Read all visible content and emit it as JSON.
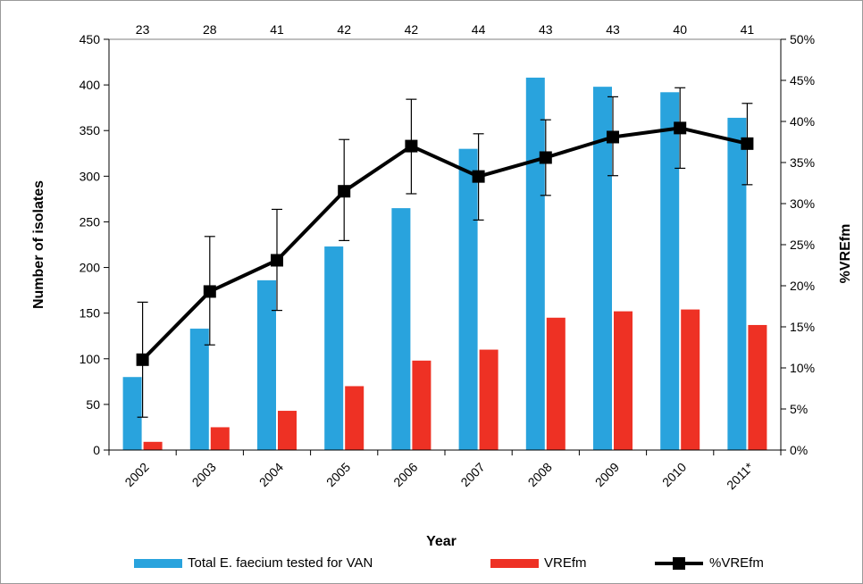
{
  "chart_data": {
    "type": "bar",
    "categories": [
      "2002",
      "2003",
      "2004",
      "2005",
      "2006",
      "2007",
      "2008",
      "2009",
      "2010",
      "2011*"
    ],
    "top_labels": [
      "23",
      "28",
      "41",
      "42",
      "42",
      "44",
      "43",
      "43",
      "40",
      "41"
    ],
    "series": [
      {
        "name": "Total E. faecium tested for VAN",
        "type": "bar",
        "axis": "left",
        "color": "#29a3dd",
        "values": [
          80,
          133,
          186,
          223,
          265,
          330,
          408,
          398,
          392,
          364
        ]
      },
      {
        "name": "VREfm",
        "type": "bar",
        "axis": "left",
        "color": "#ee3124",
        "values": [
          9,
          25,
          43,
          70,
          98,
          110,
          145,
          152,
          154,
          137
        ]
      },
      {
        "name": "%VREfm",
        "type": "line",
        "axis": "right",
        "color": "#000000",
        "values": [
          11,
          19.3,
          23.1,
          31.5,
          37,
          33.3,
          35.6,
          38.1,
          39.2,
          37.3
        ],
        "error_low": [
          4,
          12.8,
          17,
          25.5,
          31.2,
          28,
          31,
          33.4,
          34.3,
          32.3
        ],
        "error_high": [
          18,
          26,
          29.3,
          37.8,
          42.7,
          38.5,
          40.2,
          43,
          44.1,
          42.2
        ]
      }
    ],
    "xlabel": "Year",
    "ylabel": "Number of isolates",
    "y2label": "%VREfm",
    "ylim": [
      0,
      450
    ],
    "y2lim": [
      0,
      50
    ],
    "yticks": [
      "0",
      "50",
      "100",
      "150",
      "200",
      "250",
      "300",
      "350",
      "400",
      "450"
    ],
    "y2ticks": [
      "0%",
      "5%",
      "10%",
      "15%",
      "20%",
      "25%",
      "30%",
      "35%",
      "40%",
      "45%",
      "50%"
    ],
    "legend_position": "bottom",
    "grid": false
  }
}
